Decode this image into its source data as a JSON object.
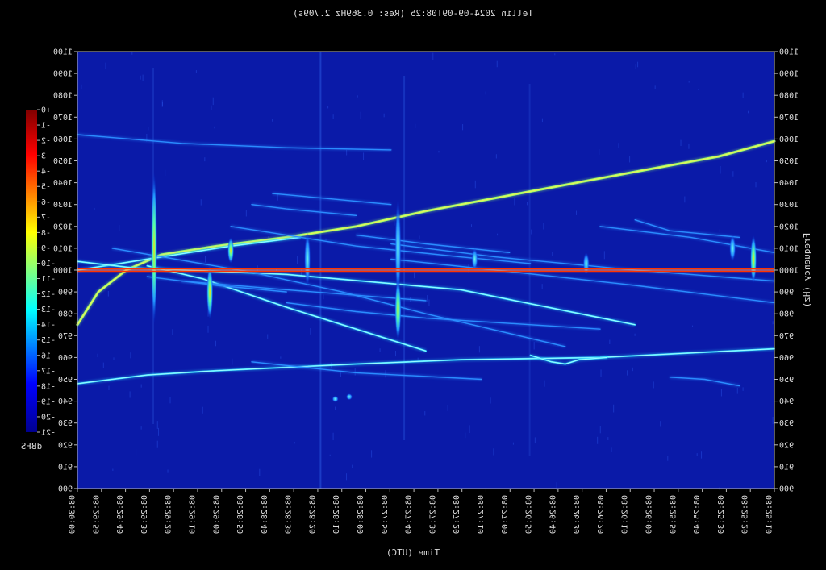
{
  "chart_data": {
    "type": "heatmap",
    "title": "Tellin 2024-09-09T08:25 (Res: 0.369Hz 2.709s)",
    "xlabel": "Time (UTC)",
    "ylabel": "Frequency (Hz)",
    "x_ticks": [
      "08:25:10",
      "08:25:20",
      "08:25:30",
      "08:25:40",
      "08:25:50",
      "08:26:00",
      "08:26:10",
      "08:26:20",
      "08:26:30",
      "08:26:40",
      "08:26:50",
      "08:27:00",
      "08:27:10",
      "08:27:20",
      "08:27:30",
      "08:27:40",
      "08:27:50",
      "08:28:00",
      "08:28:10",
      "08:28:20",
      "08:28:30",
      "08:28:40",
      "08:28:50",
      "08:29:00",
      "08:29:10",
      "08:29:20",
      "08:29:30",
      "08:29:40",
      "08:29:50",
      "08:30:00"
    ],
    "ylim": [
      900,
      1100
    ],
    "y_ticks": [
      900,
      910,
      920,
      930,
      940,
      950,
      960,
      970,
      980,
      990,
      1000,
      1010,
      1020,
      1030,
      1040,
      1050,
      1060,
      1070,
      1080,
      1090,
      1100
    ],
    "colorbar": {
      "label": "dBFS",
      "range": [
        -21,
        0
      ],
      "ticks": [
        "-21",
        "-20",
        "-19",
        "-18",
        "-17",
        "-16",
        "-15",
        "-14",
        "-13",
        "-12",
        "-11",
        "-10",
        "-9",
        "-8",
        "-7",
        "-6",
        "-5",
        "-4",
        "-3",
        "-2",
        "-1",
        "+0"
      ]
    },
    "reference_line_hz": 1000,
    "traces": [
      {
        "kind": "main-curve",
        "intensity": "high",
        "points": [
          [
            0.0,
            1059
          ],
          [
            0.08,
            1052
          ],
          [
            0.2,
            1045
          ],
          [
            0.35,
            1036
          ],
          [
            0.5,
            1027
          ],
          [
            0.6,
            1020
          ],
          [
            0.7,
            1015
          ],
          [
            0.8,
            1011
          ],
          [
            0.88,
            1007
          ],
          [
            0.93,
            1000
          ],
          [
            0.97,
            990
          ],
          [
            1.0,
            975
          ]
        ]
      },
      {
        "kind": "curve",
        "intensity": "medium",
        "points": [
          [
            0.68,
            1015
          ],
          [
            0.78,
            1011
          ],
          [
            0.88,
            1006
          ],
          [
            0.96,
            1002
          ],
          [
            1.0,
            1000
          ]
        ]
      },
      {
        "kind": "curve",
        "intensity": "low",
        "points": [
          [
            0.55,
            1055
          ],
          [
            0.7,
            1056
          ],
          [
            0.85,
            1058
          ],
          [
            1.0,
            1062
          ]
        ]
      },
      {
        "kind": "line",
        "intensity": "medium",
        "points": [
          [
            0.0,
            964
          ],
          [
            0.25,
            960
          ],
          [
            0.45,
            959
          ],
          [
            0.6,
            957
          ],
          [
            0.8,
            954
          ],
          [
            0.9,
            952
          ],
          [
            1.0,
            948
          ]
        ]
      },
      {
        "kind": "line",
        "intensity": "medium",
        "points": [
          [
            0.2,
            975
          ],
          [
            0.45,
            991
          ],
          [
            0.7,
            998
          ],
          [
            0.92,
            1001
          ],
          [
            1.0,
            1004
          ]
        ]
      },
      {
        "kind": "line",
        "intensity": "medium",
        "points": [
          [
            0.5,
            963
          ],
          [
            0.7,
            983
          ],
          [
            0.82,
            996
          ],
          [
            0.9,
            1002
          ]
        ]
      },
      {
        "kind": "line",
        "intensity": "low",
        "points": [
          [
            0.3,
            965
          ],
          [
            0.5,
            980
          ],
          [
            0.62,
            990
          ],
          [
            0.75,
            999
          ],
          [
            0.95,
            1010
          ]
        ]
      },
      {
        "kind": "line",
        "intensity": "low",
        "points": [
          [
            0.0,
            995
          ],
          [
            0.2,
            1000
          ],
          [
            0.4,
            1006
          ],
          [
            0.55,
            1012
          ]
        ]
      },
      {
        "kind": "line",
        "intensity": "low",
        "points": [
          [
            0.0,
            985
          ],
          [
            0.2,
            993
          ],
          [
            0.4,
            1000
          ],
          [
            0.55,
            1005
          ]
        ]
      },
      {
        "kind": "line",
        "intensity": "low",
        "points": [
          [
            0.0,
            1008
          ],
          [
            0.12,
            1015
          ],
          [
            0.25,
            1020
          ]
        ]
      },
      {
        "kind": "line",
        "intensity": "low",
        "points": [
          [
            0.05,
            1015
          ],
          [
            0.15,
            1018
          ],
          [
            0.2,
            1023
          ]
        ]
      },
      {
        "kind": "line",
        "intensity": "low",
        "points": [
          [
            0.35,
            1003
          ],
          [
            0.45,
            1006
          ],
          [
            0.6,
            1011
          ],
          [
            0.7,
            1016
          ],
          [
            0.78,
            1020
          ]
        ]
      },
      {
        "kind": "line",
        "intensity": "low",
        "points": [
          [
            0.38,
            1008
          ],
          [
            0.5,
            1012
          ],
          [
            0.6,
            1016
          ]
        ]
      },
      {
        "kind": "line",
        "intensity": "low",
        "points": [
          [
            0.25,
            973
          ],
          [
            0.5,
            978
          ],
          [
            0.6,
            981
          ],
          [
            0.7,
            985
          ]
        ]
      },
      {
        "kind": "line",
        "intensity": "low",
        "points": [
          [
            0.5,
            986
          ],
          [
            0.7,
            991
          ],
          [
            0.85,
            995
          ]
        ]
      },
      {
        "kind": "line",
        "intensity": "low",
        "points": [
          [
            0.55,
            1030
          ],
          [
            0.65,
            1033
          ],
          [
            0.72,
            1035
          ]
        ]
      },
      {
        "kind": "line",
        "intensity": "low",
        "points": [
          [
            0.6,
            1025
          ],
          [
            0.7,
            1028
          ],
          [
            0.75,
            1030
          ]
        ]
      },
      {
        "kind": "line",
        "intensity": "low",
        "points": [
          [
            0.42,
            950
          ],
          [
            0.6,
            953
          ],
          [
            0.75,
            958
          ]
        ]
      },
      {
        "kind": "line",
        "intensity": "low",
        "points": [
          [
            0.7,
            990
          ],
          [
            0.8,
            993
          ],
          [
            0.9,
            997
          ]
        ]
      },
      {
        "kind": "dip",
        "intensity": "medium",
        "points": [
          [
            0.24,
            960
          ],
          [
            0.28,
            959
          ],
          [
            0.3,
            957
          ],
          [
            0.32,
            958
          ],
          [
            0.35,
            961
          ]
        ]
      },
      {
        "kind": "line",
        "intensity": "low",
        "points": [
          [
            0.05,
            947
          ],
          [
            0.1,
            950
          ],
          [
            0.15,
            951
          ]
        ]
      }
    ],
    "bursts": [
      {
        "t": 0.03,
        "f_center": 1005,
        "f_span": 22,
        "intensity": "high"
      },
      {
        "t": 0.06,
        "f_center": 1010,
        "f_span": 12,
        "intensity": "medium"
      },
      {
        "t": 0.27,
        "f_center": 1003,
        "f_span": 10,
        "intensity": "medium"
      },
      {
        "t": 0.43,
        "f_center": 1005,
        "f_span": 10,
        "intensity": "medium"
      },
      {
        "t": 0.54,
        "f_center": 1010,
        "f_span": 45,
        "intensity": "medium"
      },
      {
        "t": 0.54,
        "f_center": 982,
        "f_span": 28,
        "intensity": "high"
      },
      {
        "t": 0.67,
        "f_center": 1005,
        "f_span": 25,
        "intensity": "medium"
      },
      {
        "t": 0.78,
        "f_center": 1009,
        "f_span": 12,
        "intensity": "high"
      },
      {
        "t": 0.81,
        "f_center": 990,
        "f_span": 25,
        "intensity": "high"
      },
      {
        "t": 0.89,
        "f_center": 1010,
        "f_span": 70,
        "intensity": "high"
      },
      {
        "t": 0.63,
        "f_center": 941,
        "f_span": 3,
        "intensity": "medium"
      },
      {
        "t": 0.61,
        "f_center": 942,
        "f_span": 3,
        "intensity": "medium"
      }
    ]
  }
}
